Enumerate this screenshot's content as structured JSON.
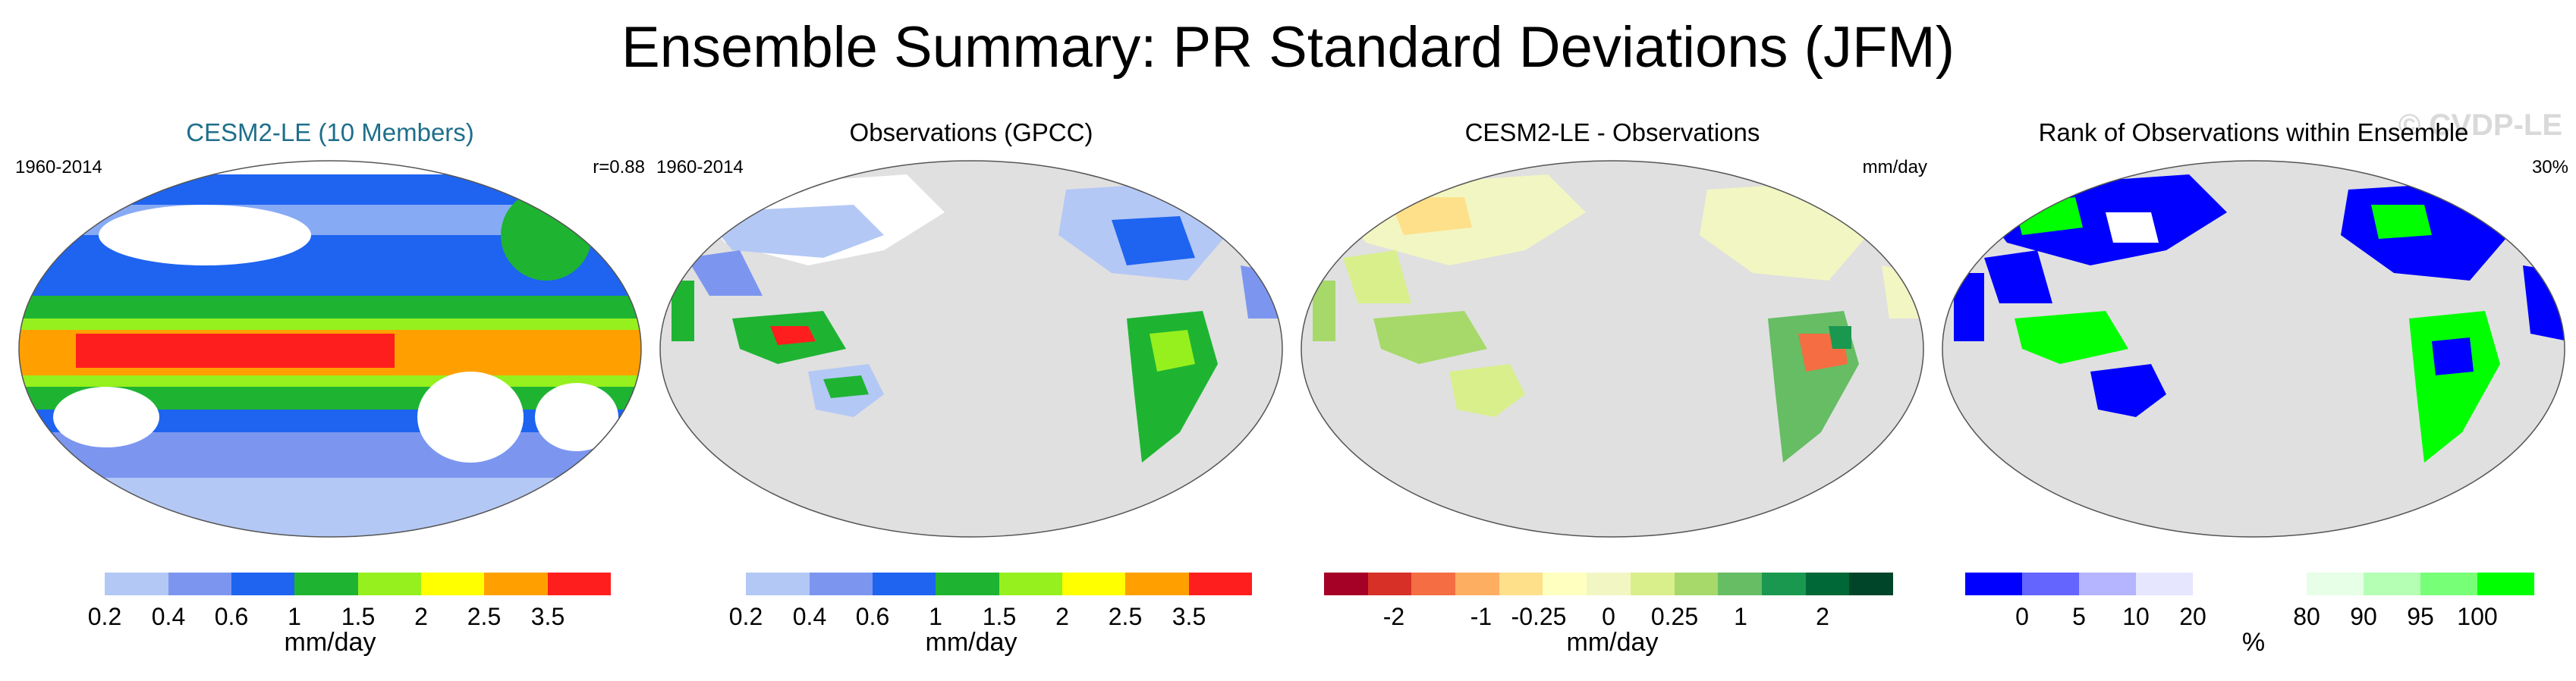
{
  "title": "Ensemble Summary: PR Standard Deviations (JFM)",
  "watermark": "© CVDP-LE",
  "panels": [
    {
      "title": "CESM2-LE (10 Members)",
      "left_label": "1960-2014",
      "right_label": "r=0.88",
      "unit": "mm/day",
      "colors": [
        "#ffffff",
        "#b4c8f5",
        "#7c96f0",
        "#1e64f0",
        "#1eb432",
        "#96f01e",
        "#ffff00",
        "#ffa000",
        "#ff1e1e"
      ],
      "ticks": [
        "0.2",
        "0.4",
        "0.6",
        "1",
        "1.5",
        "2",
        "2.5",
        "3.5"
      ]
    },
    {
      "title": "Observations (GPCC)",
      "left_label": "1960-2014",
      "right_label": "",
      "unit": "mm/day",
      "colors": [
        "#ffffff",
        "#b4c8f5",
        "#7c96f0",
        "#1e64f0",
        "#1eb432",
        "#96f01e",
        "#ffff00",
        "#ffa000",
        "#ff1e1e"
      ],
      "ticks": [
        "0.2",
        "0.4",
        "0.6",
        "1",
        "1.5",
        "2",
        "2.5",
        "3.5"
      ]
    },
    {
      "title": "CESM2-LE - Observations",
      "left_label": "",
      "right_label": "mm/day",
      "unit": "mm/day",
      "colors": [
        "#a50026",
        "#d73027",
        "#f46d43",
        "#fdae61",
        "#fee08b",
        "#ffffbf",
        "#f2f6c2",
        "#d9ef8b",
        "#a6d96a",
        "#66bd63",
        "#1a9850",
        "#006837",
        "#00452a"
      ],
      "ticks": [
        "-2",
        "-1",
        "-0.25",
        "0",
        "0.25",
        "1",
        "2"
      ]
    },
    {
      "title": "Rank of Observations within Ensemble",
      "left_label": "",
      "right_label": "30%",
      "unit": "%",
      "colors": [
        "#0000ff",
        "#6464ff",
        "#b4b4ff",
        "#e6e6ff",
        "#ffffff",
        "#ffffff",
        "#e6ffe6",
        "#b4ffb4",
        "#78ff78",
        "#00ff00"
      ],
      "ticks": [
        "0",
        "5",
        "10",
        "20",
        "80",
        "90",
        "95",
        "100"
      ]
    }
  ]
}
